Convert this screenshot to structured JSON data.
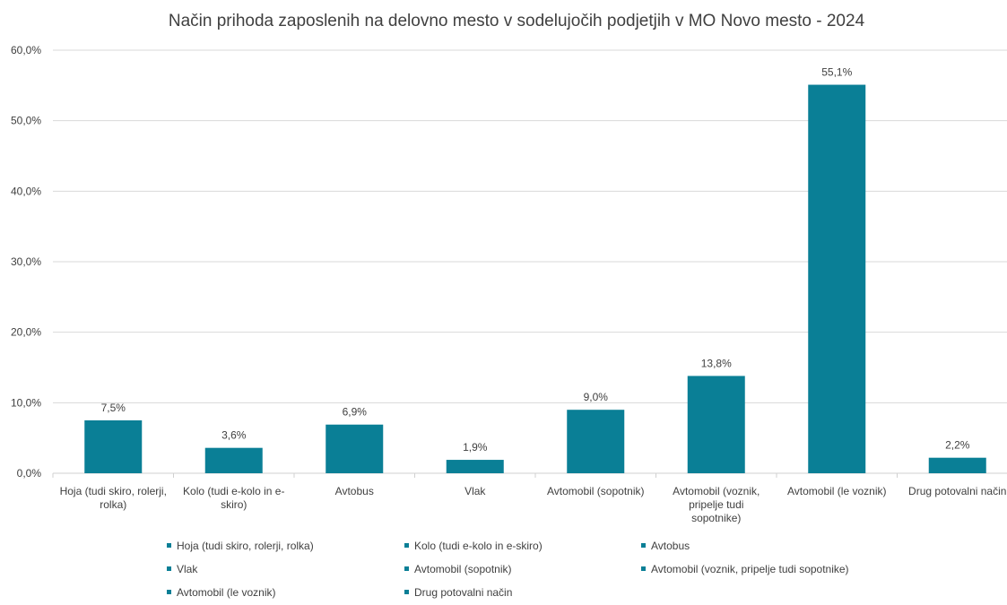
{
  "chart_data": {
    "type": "bar",
    "title": "Način prihoda zaposlenih na delovno mesto v sodelujočih podjetjih v MO Novo mesto - 2024",
    "xlabel": "",
    "ylabel": "",
    "ylim": [
      0,
      60
    ],
    "y_ticks": [
      "0,0%",
      "10,0%",
      "20,0%",
      "30,0%",
      "40,0%",
      "50,0%",
      "60,0%"
    ],
    "grid": true,
    "legend_position": "bottom",
    "bar_color": "#0A7F96",
    "categories": [
      "Hoja (tudi skiro, rolerji, rolka)",
      "Kolo (tudi e-kolo in e-skiro)",
      "Avtobus",
      "Vlak",
      "Avtomobil (sopotnik)",
      "Avtomobil (voznik, pripelje tudi sopotnike)",
      "Avtomobil (le voznik)",
      "Drug potovalni način"
    ],
    "category_labels": [
      [
        "Hoja (tudi skiro, rolerji,",
        "rolka)"
      ],
      [
        "Kolo (tudi e-kolo in e-",
        "skiro)"
      ],
      [
        "Avtobus"
      ],
      [
        "Vlak"
      ],
      [
        "Avtomobil (sopotnik)"
      ],
      [
        "Avtomobil (voznik,",
        "pripelje tudi",
        "sopotnike)"
      ],
      [
        "Avtomobil (le voznik)"
      ],
      [
        "Drug potovalni način"
      ]
    ],
    "values": [
      7.5,
      3.6,
      6.9,
      1.9,
      9.0,
      13.8,
      55.1,
      2.2
    ],
    "data_labels": [
      "7,5%",
      "3,6%",
      "6,9%",
      "1,9%",
      "9,0%",
      "13,8%",
      "55,1%",
      "2,2%"
    ],
    "legend": [
      "Hoja (tudi skiro, rolerji, rolka)",
      "Kolo (tudi e-kolo in e-skiro)",
      "Avtobus",
      "Vlak",
      "Avtomobil (sopotnik)",
      "Avtomobil (voznik, pripelje tudi sopotnike)",
      "Avtomobil (le voznik)",
      "Drug potovalni način"
    ]
  }
}
